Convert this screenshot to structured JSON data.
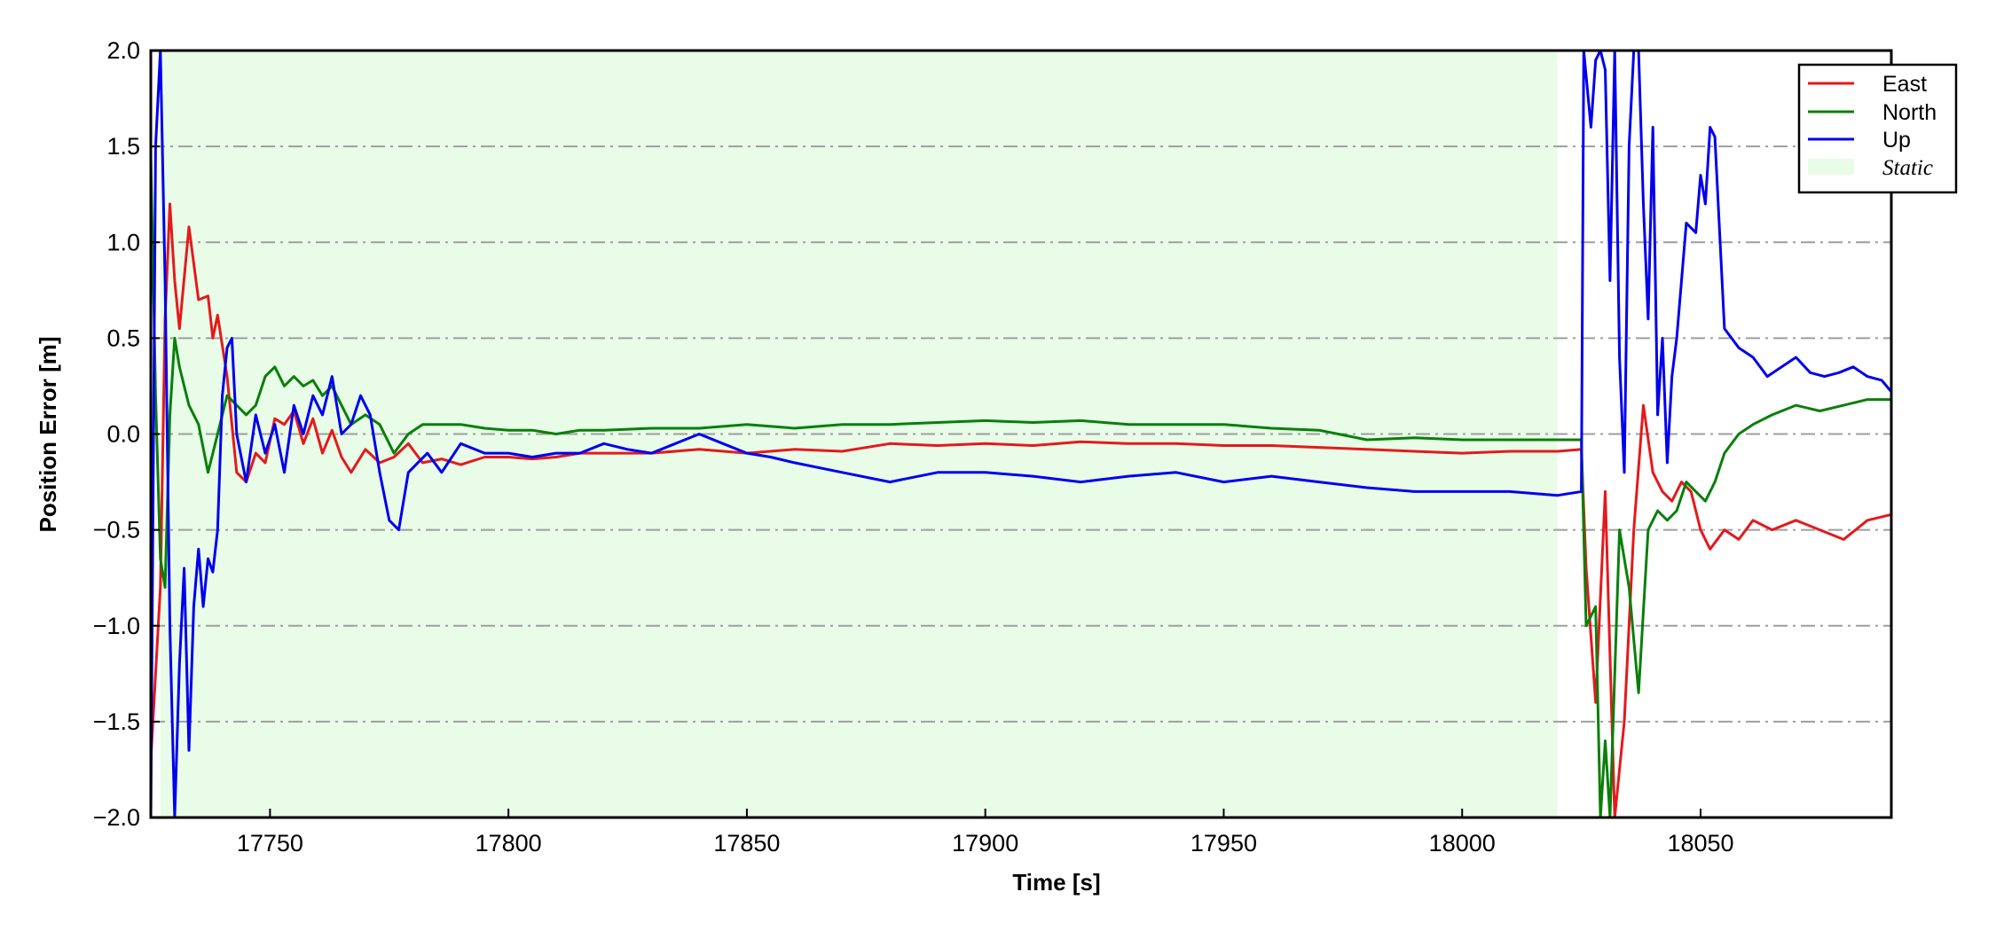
{
  "chart_data": {
    "type": "line",
    "xlabel": "Time [s]",
    "ylabel": "Position Error [m]",
    "xlim": [
      17725,
      18090
    ],
    "ylim": [
      -2.0,
      2.0
    ],
    "xticks": [
      17750,
      17800,
      17850,
      17900,
      17950,
      18000,
      18050
    ],
    "xtick_labels": [
      "17750",
      "17800",
      "17850",
      "17900",
      "17950",
      "18000",
      "18050"
    ],
    "yticks": [
      2.0,
      1.5,
      1.0,
      0.5,
      0.0,
      -0.5,
      -1.0,
      -1.5,
      -2.0
    ],
    "ytick_labels": [
      "2.0",
      "1.5",
      "1.0",
      "0.5",
      "0.0",
      "−0.5",
      "−1.0",
      "−1.5",
      "−2.0"
    ],
    "grid": "horizontal dash-dot",
    "legend_position": "top-right",
    "shaded_region": {
      "label": "Static",
      "x_range": [
        17727,
        18020
      ],
      "color": "#e8fce8"
    },
    "series": [
      {
        "name": "East",
        "color": "#e31a1c",
        "x": [
          17725,
          17727,
          17728,
          17729,
          17730,
          17731,
          17733,
          17735,
          17737,
          17738,
          17739,
          17741,
          17743,
          17745,
          17747,
          17749,
          17751,
          17753,
          17755,
          17757,
          17759,
          17761,
          17763,
          17765,
          17767,
          17770,
          17773,
          17776,
          17779,
          17782,
          17786,
          17790,
          17795,
          17800,
          17805,
          17810,
          17815,
          17820,
          17830,
          17840,
          17850,
          17860,
          17870,
          17880,
          17890,
          17900,
          17910,
          17920,
          17930,
          17940,
          17950,
          17960,
          17970,
          17980,
          17990,
          18000,
          18010,
          18020,
          18025,
          18026,
          18028,
          18030,
          18032,
          18034,
          18036,
          18038,
          18040,
          18042,
          18044,
          18046,
          18048,
          18050,
          18052,
          18055,
          18058,
          18061,
          18065,
          18070,
          18075,
          18080,
          18085,
          18090
        ],
        "y": [
          -1.7,
          -0.8,
          0.6,
          1.2,
          0.8,
          0.55,
          1.08,
          0.7,
          0.72,
          0.5,
          0.62,
          0.3,
          -0.2,
          -0.25,
          -0.1,
          -0.15,
          0.08,
          0.05,
          0.12,
          -0.05,
          0.08,
          -0.1,
          0.02,
          -0.12,
          -0.2,
          -0.08,
          -0.15,
          -0.12,
          -0.05,
          -0.15,
          -0.13,
          -0.16,
          -0.12,
          -0.12,
          -0.13,
          -0.12,
          -0.1,
          -0.1,
          -0.1,
          -0.08,
          -0.1,
          -0.08,
          -0.09,
          -0.05,
          -0.06,
          -0.05,
          -0.06,
          -0.04,
          -0.05,
          -0.05,
          -0.06,
          -0.06,
          -0.07,
          -0.08,
          -0.09,
          -0.1,
          -0.09,
          -0.09,
          -0.08,
          -0.7,
          -1.4,
          -0.3,
          -2.0,
          -1.5,
          -0.5,
          0.15,
          -0.2,
          -0.3,
          -0.35,
          -0.25,
          -0.3,
          -0.5,
          -0.6,
          -0.5,
          -0.55,
          -0.45,
          -0.5,
          -0.45,
          -0.5,
          -0.55,
          -0.45,
          -0.42
        ]
      },
      {
        "name": "North",
        "color": "#0a7f0a",
        "x": [
          17725,
          17726,
          17727,
          17728,
          17729,
          17730,
          17731,
          17733,
          17735,
          17737,
          17739,
          17741,
          17743,
          17745,
          17747,
          17749,
          17751,
          17753,
          17755,
          17757,
          17759,
          17761,
          17763,
          17765,
          17767,
          17770,
          17773,
          17776,
          17779,
          17782,
          17786,
          17790,
          17795,
          17800,
          17805,
          17810,
          17815,
          17820,
          17830,
          17840,
          17850,
          17860,
          17870,
          17880,
          17890,
          17900,
          17910,
          17920,
          17930,
          17940,
          17950,
          17960,
          17970,
          17980,
          17990,
          18000,
          18010,
          18020,
          18025,
          18026,
          18028,
          18029,
          18030,
          18031,
          18033,
          18035,
          18037,
          18039,
          18041,
          18043,
          18045,
          18047,
          18049,
          18051,
          18053,
          18055,
          18058,
          18061,
          18065,
          18070,
          18075,
          18080,
          18085,
          18090
        ],
        "y": [
          1.45,
          0.2,
          -0.65,
          -0.8,
          0.1,
          0.5,
          0.35,
          0.15,
          0.05,
          -0.2,
          0.0,
          0.2,
          0.15,
          0.1,
          0.15,
          0.3,
          0.35,
          0.25,
          0.3,
          0.25,
          0.28,
          0.2,
          0.25,
          0.15,
          0.05,
          0.1,
          0.05,
          -0.1,
          0.0,
          0.05,
          0.05,
          0.05,
          0.03,
          0.02,
          0.02,
          0.0,
          0.02,
          0.02,
          0.03,
          0.03,
          0.05,
          0.03,
          0.05,
          0.05,
          0.06,
          0.07,
          0.06,
          0.07,
          0.05,
          0.05,
          0.05,
          0.03,
          0.02,
          -0.03,
          -0.02,
          -0.03,
          -0.03,
          -0.03,
          -0.03,
          -1.0,
          -0.9,
          -2.0,
          -1.6,
          -2.0,
          -0.5,
          -0.8,
          -1.35,
          -0.5,
          -0.4,
          -0.45,
          -0.4,
          -0.25,
          -0.3,
          -0.35,
          -0.25,
          -0.1,
          0.0,
          0.05,
          0.1,
          0.15,
          0.12,
          0.15,
          0.18,
          0.18
        ]
      },
      {
        "name": "Up",
        "color": "#0000ee",
        "x": [
          17725,
          17726,
          17727,
          17728,
          17729,
          17730,
          17731,
          17732,
          17733,
          17734,
          17735,
          17736,
          17737,
          17738,
          17739,
          17740,
          17741,
          17742,
          17743,
          17745,
          17747,
          17749,
          17751,
          17753,
          17755,
          17757,
          17759,
          17761,
          17763,
          17765,
          17767,
          17769,
          17771,
          17773,
          17775,
          17777,
          17779,
          17781,
          17783,
          17786,
          17790,
          17795,
          17800,
          17805,
          17810,
          17815,
          17820,
          17825,
          17830,
          17835,
          17840,
          17845,
          17850,
          17855,
          17860,
          17870,
          17880,
          17890,
          17900,
          17910,
          17920,
          17930,
          17940,
          17950,
          17960,
          17970,
          17980,
          17990,
          18000,
          18010,
          18020,
          18025,
          18025.5,
          18027,
          18028,
          18029,
          18030,
          18031,
          18032,
          18033,
          18034,
          18035,
          18036,
          18037,
          18038,
          18039,
          18040,
          18041,
          18042,
          18043,
          18044,
          18045,
          18047,
          18049,
          18050,
          18051,
          18052,
          18053,
          18055,
          18058,
          18061,
          18064,
          18067,
          18070,
          18073,
          18076,
          18079,
          18082,
          18085,
          18088,
          18090
        ],
        "y": [
          -2.0,
          1.5,
          2.0,
          0.8,
          -1.0,
          -2.0,
          -1.2,
          -0.7,
          -1.65,
          -0.9,
          -0.6,
          -0.9,
          -0.65,
          -0.72,
          -0.5,
          0.2,
          0.45,
          0.5,
          0.0,
          -0.25,
          0.1,
          -0.1,
          0.05,
          -0.2,
          0.15,
          0.0,
          0.2,
          0.1,
          0.3,
          0.0,
          0.05,
          0.2,
          0.1,
          -0.2,
          -0.45,
          -0.5,
          -0.2,
          -0.15,
          -0.1,
          -0.2,
          -0.05,
          -0.1,
          -0.1,
          -0.12,
          -0.1,
          -0.1,
          -0.05,
          -0.08,
          -0.1,
          -0.05,
          0.0,
          -0.05,
          -0.1,
          -0.12,
          -0.15,
          -0.2,
          -0.25,
          -0.2,
          -0.2,
          -0.22,
          -0.25,
          -0.22,
          -0.2,
          -0.25,
          -0.22,
          -0.25,
          -0.28,
          -0.3,
          -0.3,
          -0.3,
          -0.32,
          -0.3,
          2.0,
          1.6,
          1.95,
          2.0,
          1.9,
          0.8,
          2.0,
          0.4,
          -0.2,
          1.5,
          2.0,
          2.0,
          1.2,
          0.6,
          1.6,
          0.1,
          0.5,
          -0.15,
          0.3,
          0.5,
          1.1,
          1.05,
          1.35,
          1.2,
          1.6,
          1.55,
          0.55,
          0.45,
          0.4,
          0.3,
          0.35,
          0.4,
          0.32,
          0.3,
          0.32,
          0.35,
          0.3,
          0.28,
          0.22
        ]
      }
    ]
  }
}
